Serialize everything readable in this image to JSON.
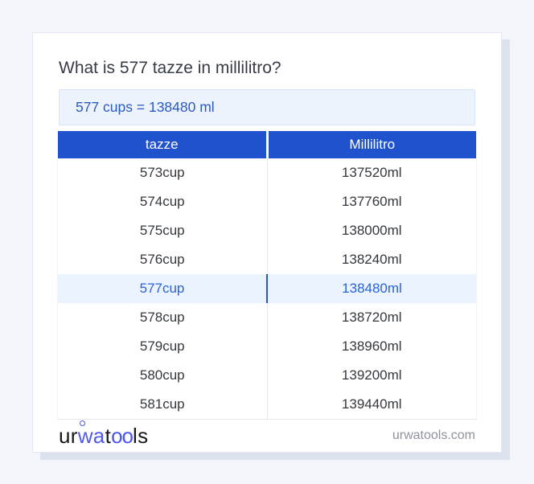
{
  "question": "What is 577 tazze in millilitro?",
  "result": "577 cups = 138480 ml",
  "table": {
    "headers": [
      "tazze",
      "Millilitro"
    ],
    "rows": [
      {
        "tazze": "573cup",
        "millilitro": "137520ml",
        "highlighted": false
      },
      {
        "tazze": "574cup",
        "millilitro": "137760ml",
        "highlighted": false
      },
      {
        "tazze": "575cup",
        "millilitro": "138000ml",
        "highlighted": false
      },
      {
        "tazze": "576cup",
        "millilitro": "138240ml",
        "highlighted": false
      },
      {
        "tazze": "577cup",
        "millilitro": "138480ml",
        "highlighted": true
      },
      {
        "tazze": "578cup",
        "millilitro": "138720ml",
        "highlighted": false
      },
      {
        "tazze": "579cup",
        "millilitro": "138960ml",
        "highlighted": false
      },
      {
        "tazze": "580cup",
        "millilitro": "139200ml",
        "highlighted": false
      },
      {
        "tazze": "581cup",
        "millilitro": "139440ml",
        "highlighted": false
      }
    ]
  },
  "footer": {
    "logo_parts": [
      {
        "text": "ur",
        "color": "#17181c",
        "ring": false,
        "tight": false
      },
      {
        "text": "wa",
        "color": "#5159ef",
        "ring": true,
        "tight": false
      },
      {
        "text": "t",
        "color": "#17181c",
        "ring": false,
        "tight": false
      },
      {
        "text": "oo",
        "color": "#4b55ee",
        "ring": false,
        "tight": true
      },
      {
        "text": "ls",
        "color": "#17181c",
        "ring": false,
        "tight": false
      }
    ],
    "domain": "urwatools.com"
  },
  "colors": {
    "page_bg": "#f3f5fa",
    "card_bg": "#ffffff",
    "card_shadow": "#dce1ee",
    "header_bg": "#2152cd",
    "header_text": "#ffffff",
    "result_bg": "#edf3fc",
    "result_border": "#d8e5f8",
    "result_text": "#2b59c4",
    "highlight_bg": "#eaf3fe",
    "highlight_text": "#2a62d9",
    "body_text": "#34383e",
    "domain_text": "#8e939d",
    "logo_blue": "#5159ef"
  }
}
